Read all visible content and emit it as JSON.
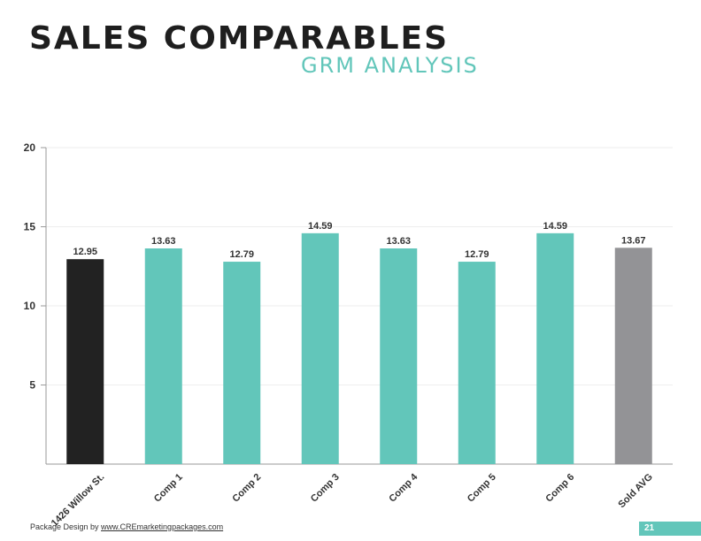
{
  "header": {
    "title": "SALES COMPARABLES",
    "subtitle": "GRM ANALYSIS"
  },
  "footer": {
    "credit_prefix": "Package Design by ",
    "credit_link": "www.CREmarketingpackages.com",
    "page_number": "21"
  },
  "colors": {
    "accent": "#62c6ba",
    "subject": "#222222",
    "average": "#939396"
  },
  "chart_data": {
    "type": "bar",
    "categories": [
      "1426 Willow St.",
      "Comp 1",
      "Comp 2",
      "Comp 3",
      "Comp 4",
      "Comp 5",
      "Comp 6",
      "Sold AVG"
    ],
    "values": [
      12.95,
      13.63,
      12.79,
      14.59,
      13.63,
      12.79,
      14.59,
      13.67
    ],
    "data_labels": [
      "12.95",
      "13.63",
      "12.79",
      "14.59",
      "13.63",
      "12.79",
      "14.59",
      "13.67"
    ],
    "bar_colors": [
      "#222222",
      "#62c6ba",
      "#62c6ba",
      "#62c6ba",
      "#62c6ba",
      "#62c6ba",
      "#62c6ba",
      "#939396"
    ],
    "ylim": [
      0,
      20
    ],
    "yticks": [
      5,
      10,
      15,
      20
    ],
    "title": "",
    "xlabel": "",
    "ylabel": "",
    "grid": true,
    "legend": "none"
  }
}
